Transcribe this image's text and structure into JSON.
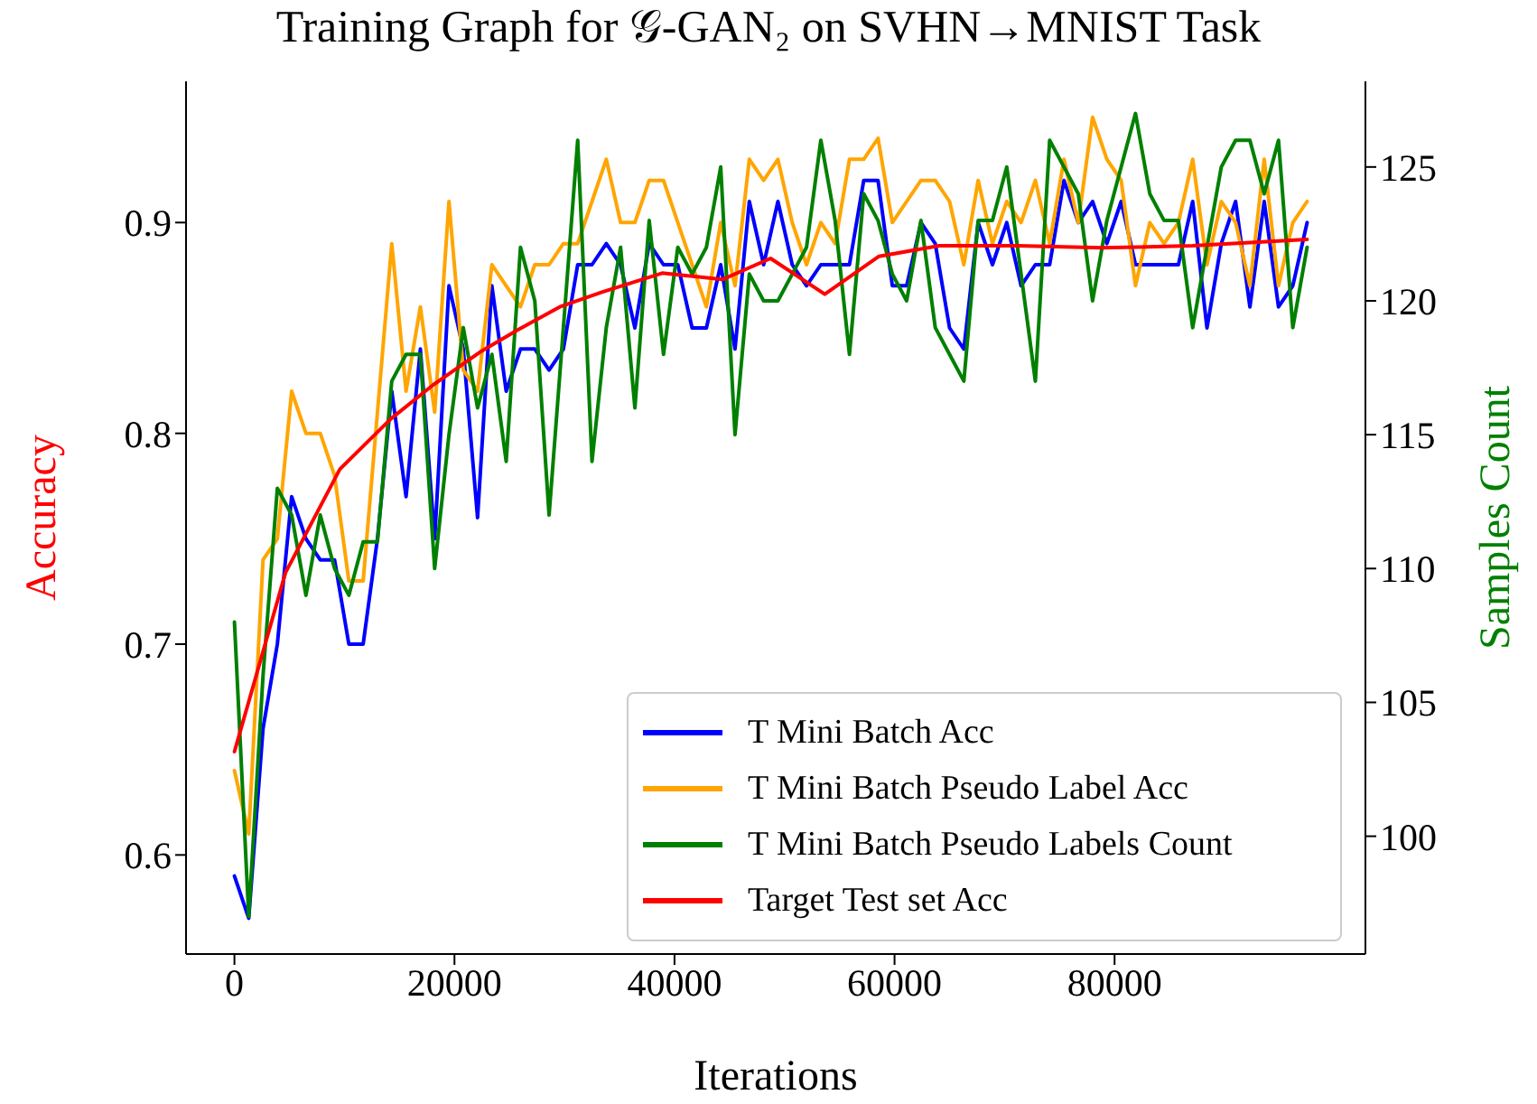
{
  "chart_data": {
    "type": "line",
    "title": "Training Graph for 𝒢-GAN₂ on SVHN→MNIST Task",
    "xlabel": "Iterations",
    "ylabel": "Accuracy",
    "y2label": "Samples Count",
    "xlim": [
      -4400,
      102800
    ],
    "xticks": [
      0,
      20000,
      40000,
      60000,
      80000
    ],
    "ylim": [
      0.553,
      0.967
    ],
    "yticks": [
      0.6,
      0.7,
      0.8,
      0.9
    ],
    "y2lim": [
      95.6,
      128.2
    ],
    "y2ticks": [
      100,
      105,
      110,
      115,
      120,
      125
    ],
    "x": [
      0,
      1300,
      2600,
      3900,
      5200,
      6500,
      7800,
      9100,
      10400,
      11700,
      13000,
      14300,
      15600,
      16900,
      18200,
      19500,
      20800,
      22100,
      23400,
      24700,
      26000,
      27300,
      28600,
      29900,
      31200,
      32500,
      33800,
      35100,
      36400,
      37700,
      39000,
      40300,
      41600,
      42900,
      44200,
      45500,
      46800,
      48100,
      49400,
      50700,
      52000,
      53300,
      54600,
      55900,
      57200,
      58500,
      59800,
      61100,
      62400,
      63700,
      65000,
      66300,
      67600,
      68900,
      70200,
      71500,
      72800,
      74100,
      75400,
      76700,
      78000,
      79300,
      80600,
      81900,
      83200,
      84500,
      85800,
      87100,
      88400,
      89700,
      91000,
      92300,
      93600,
      94900,
      96200,
      97500
    ],
    "series": [
      {
        "name": "T Mini Batch Acc",
        "color": "#0000ff",
        "values": [
          0.59,
          0.57,
          0.66,
          0.7,
          0.77,
          0.75,
          0.74,
          0.74,
          0.7,
          0.7,
          0.75,
          0.82,
          0.77,
          0.84,
          0.75,
          0.87,
          0.84,
          0.76,
          0.87,
          0.82,
          0.84,
          0.84,
          0.83,
          0.84,
          0.88,
          0.88,
          0.89,
          0.88,
          0.85,
          0.89,
          0.88,
          0.88,
          0.85,
          0.85,
          0.88,
          0.84,
          0.91,
          0.88,
          0.91,
          0.88,
          0.87,
          0.88,
          0.88,
          0.88,
          0.92,
          0.92,
          0.87,
          0.87,
          0.9,
          0.89,
          0.85,
          0.84,
          0.9,
          0.88,
          0.9,
          0.87,
          0.88,
          0.88,
          0.92,
          0.9,
          0.91,
          0.89,
          0.91,
          0.88,
          0.88,
          0.88,
          0.88,
          0.91,
          0.85,
          0.89,
          0.91,
          0.86,
          0.91,
          0.86,
          0.87,
          0.9
        ]
      },
      {
        "name": "T Mini Batch Pseudo Label Acc",
        "color": "#ffa500",
        "values": [
          0.64,
          0.61,
          0.74,
          0.75,
          0.82,
          0.8,
          0.8,
          0.78,
          0.73,
          0.73,
          0.81,
          0.89,
          0.82,
          0.86,
          0.81,
          0.91,
          0.83,
          0.82,
          0.88,
          0.87,
          0.86,
          0.88,
          0.88,
          0.89,
          0.89,
          0.91,
          0.93,
          0.9,
          0.9,
          0.92,
          0.92,
          0.9,
          0.88,
          0.86,
          0.9,
          0.87,
          0.93,
          0.92,
          0.93,
          0.9,
          0.88,
          0.9,
          0.89,
          0.93,
          0.93,
          0.94,
          0.9,
          0.91,
          0.92,
          0.92,
          0.91,
          0.88,
          0.92,
          0.89,
          0.91,
          0.9,
          0.92,
          0.89,
          0.93,
          0.9,
          0.95,
          0.93,
          0.92,
          0.87,
          0.9,
          0.89,
          0.9,
          0.93,
          0.88,
          0.91,
          0.9,
          0.87,
          0.93,
          0.87,
          0.9,
          0.91
        ]
      },
      {
        "name": "T Mini Batch Pseudo Labels Count",
        "color": "#008000",
        "axis": "y2",
        "values": [
          108,
          97,
          106,
          113,
          112,
          109,
          112,
          110,
          109,
          111,
          111,
          117,
          118,
          118,
          110,
          115,
          119,
          116,
          118,
          114,
          122,
          120,
          112,
          119,
          126,
          114,
          119,
          122,
          116,
          123,
          118,
          122,
          121,
          122,
          125,
          115,
          121,
          120,
          120,
          121,
          122,
          126,
          123,
          118,
          124,
          123,
          121,
          120,
          123,
          119,
          118,
          117,
          123,
          123,
          125,
          121,
          117,
          126,
          125,
          124,
          120,
          123,
          125,
          127,
          124,
          123,
          123,
          119,
          122,
          125,
          126,
          126,
          124,
          126,
          119,
          122
        ]
      },
      {
        "name": "Target Test set Acc",
        "color": "#ff0000",
        "x": [
          0,
          2300,
          4650,
          9580,
          14240,
          18070,
          22450,
          25740,
          29570,
          33400,
          38880,
          44350,
          48730,
          53660,
          58590,
          64070,
          71180,
          78850,
          87060,
          97500
        ],
        "values": [
          0.649,
          0.691,
          0.734,
          0.783,
          0.807,
          0.823,
          0.839,
          0.849,
          0.86,
          0.867,
          0.876,
          0.873,
          0.883,
          0.866,
          0.884,
          0.889,
          0.889,
          0.888,
          0.889,
          0.892
        ]
      }
    ],
    "legend": "bottom right",
    "grid": false,
    "marker": "none",
    "line_style": "solid"
  }
}
